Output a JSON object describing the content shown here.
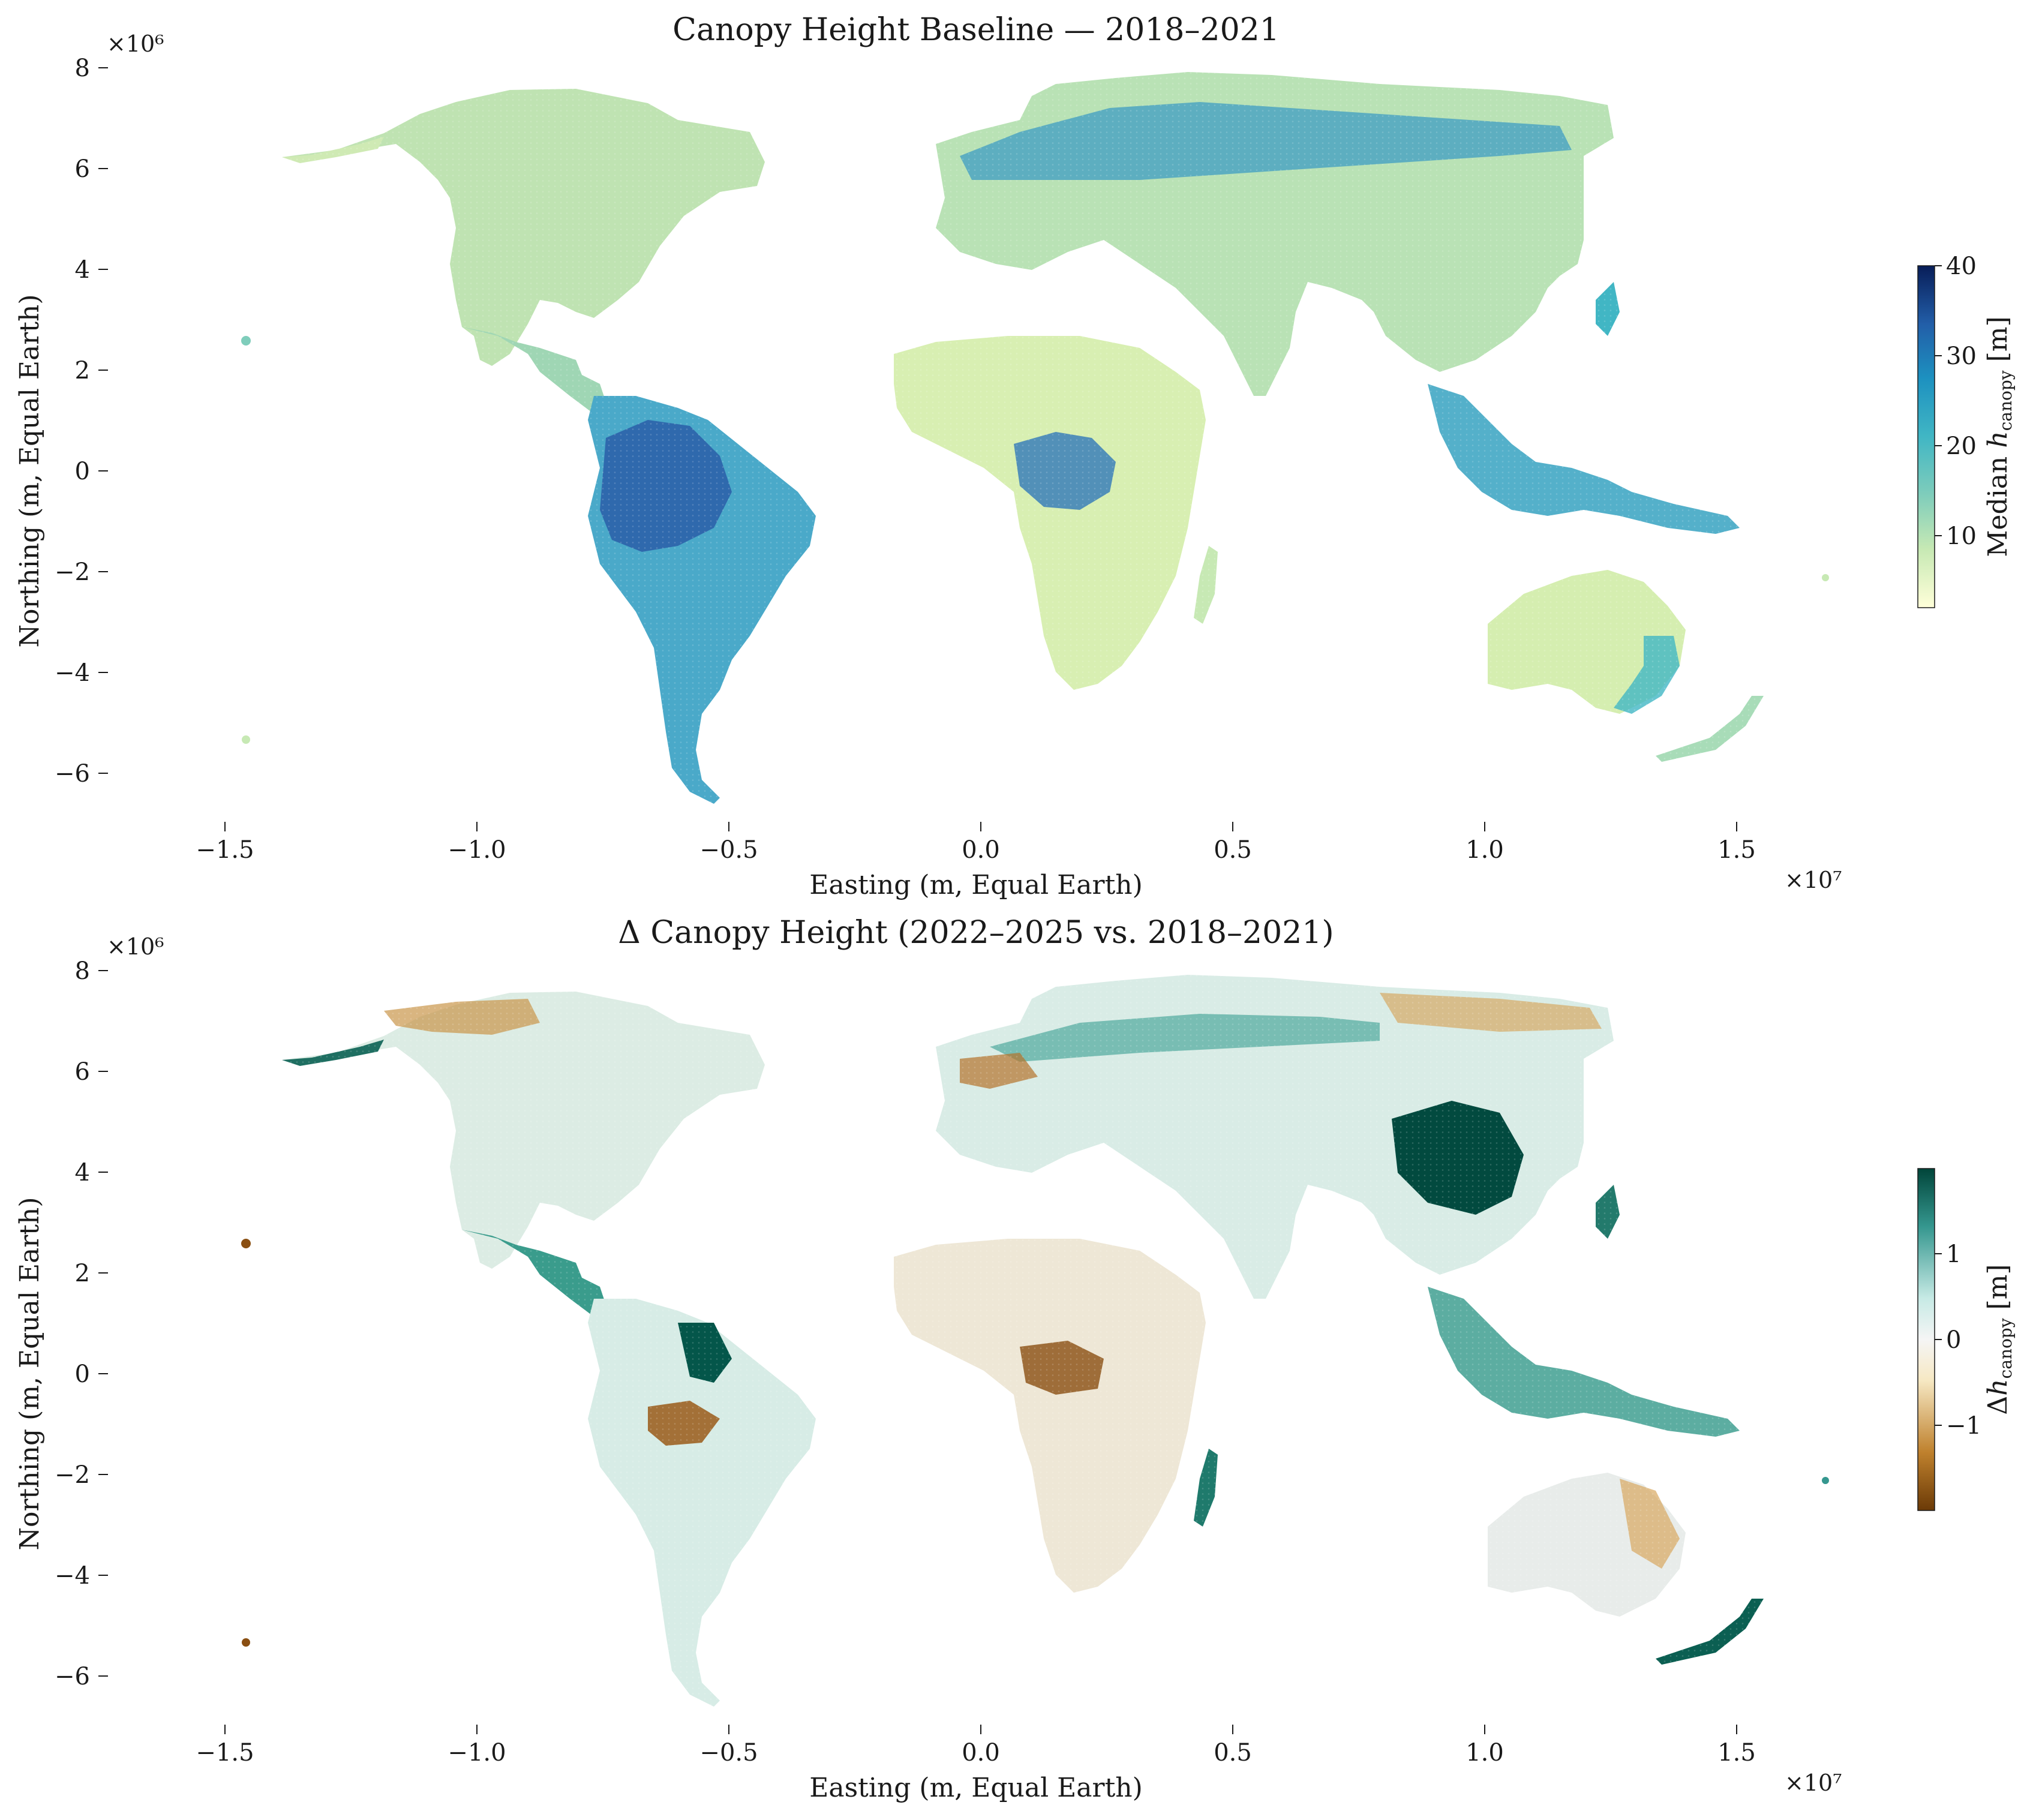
{
  "panels": [
    {
      "title": "Canopy Height Baseline — 2018–2021",
      "xlabel": "Easting (m, Equal Earth)",
      "ylabel": "Northing (m, Equal Earth)",
      "x_multiplier": "×10⁷",
      "y_multiplier": "×10⁶",
      "x_ticks": [
        "−1.5",
        "−1.0",
        "−0.5",
        "0.0",
        "0.5",
        "1.0",
        "1.5"
      ],
      "y_ticks": [
        "8",
        "6",
        "4",
        "2",
        "0",
        "−2",
        "−4",
        "−6"
      ],
      "colorbar": {
        "label": "Median h_canopy [m]",
        "label_main": "Median ",
        "label_var": "h",
        "label_sub": "canopy",
        "label_unit": " [m]",
        "ticks": [
          "40",
          "30",
          "20",
          "10"
        ],
        "tick_values": [
          40,
          30,
          20,
          10
        ],
        "range": [
          2,
          40
        ],
        "colormap": "YlGnBu",
        "colors": [
          "#ffffd9",
          "#c7e9b4",
          "#7fcdbb",
          "#41b6c4",
          "#1d91c0",
          "#225ea8",
          "#081d58"
        ]
      }
    },
    {
      "title": "Δ Canopy Height (2022–2025 vs. 2018–2021)",
      "xlabel": "Easting (m, Equal Earth)",
      "ylabel": "Northing (m, Equal Earth)",
      "x_multiplier": "×10⁷",
      "y_multiplier": "×10⁶",
      "x_ticks": [
        "−1.5",
        "−1.0",
        "−0.5",
        "0.0",
        "0.5",
        "1.0",
        "1.5"
      ],
      "y_ticks": [
        "8",
        "6",
        "4",
        "2",
        "0",
        "−2",
        "−4",
        "−6"
      ],
      "colorbar": {
        "label": "Δh_canopy [m]",
        "label_main": "Δ",
        "label_var": "h",
        "label_sub": "canopy",
        "label_unit": " [m]",
        "ticks": [
          "1",
          "0",
          "−1"
        ],
        "tick_values": [
          1,
          0,
          -1
        ],
        "range": [
          -2,
          2
        ],
        "colormap": "BrBG",
        "colors": [
          "#6b3a07",
          "#bf812d",
          "#f6e8c3",
          "#f5f5f5",
          "#c7eae5",
          "#35978f",
          "#01453a"
        ]
      }
    }
  ],
  "axis": {
    "x_range_m": [
      -17000000,
      17500000
    ],
    "y_range_m": [
      -7000000,
      8300000
    ],
    "x_tick_values_m": [
      -15000000,
      -10000000,
      -5000000,
      0,
      5000000,
      10000000,
      15000000
    ],
    "y_tick_values_m": [
      8000000,
      6000000,
      4000000,
      2000000,
      0,
      -2000000,
      -4000000,
      -6000000
    ]
  }
}
